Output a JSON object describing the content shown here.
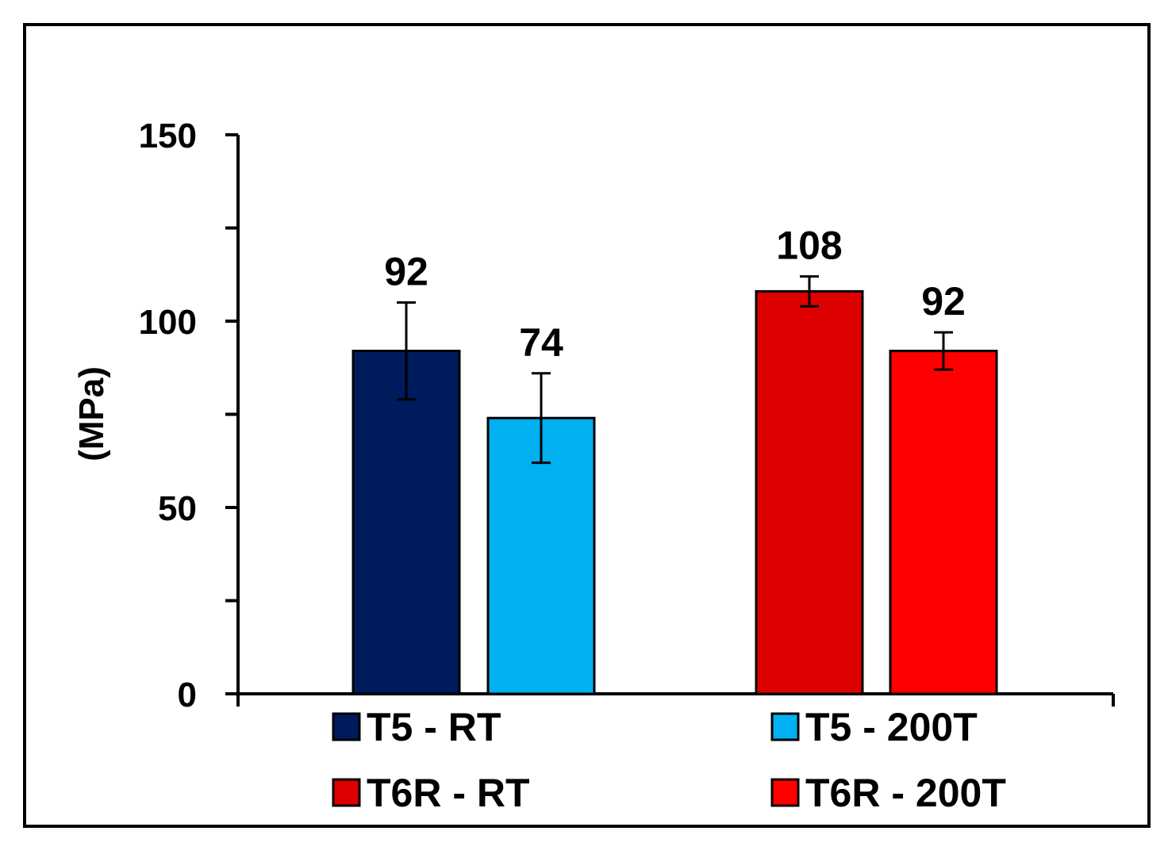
{
  "chart_data": {
    "type": "bar",
    "title": "",
    "xlabel": "",
    "ylabel": "(MPa)",
    "ylim": [
      0,
      150
    ],
    "yticks": [
      0,
      50,
      100,
      150
    ],
    "y_minor_step": 25,
    "grid": false,
    "legend_position": "bottom",
    "groups": [
      {
        "series": [
          "T5 - RT",
          "T5 - 200T"
        ]
      },
      {
        "series": [
          "T6R - RT",
          "T6R - 200T"
        ]
      }
    ],
    "series": [
      {
        "name": "T5 - RT",
        "value": 92,
        "error": 13,
        "label": "92",
        "color": "#001a5e"
      },
      {
        "name": "T5 - 200T",
        "value": 74,
        "error": 12,
        "label": "74",
        "color": "#00b0f0"
      },
      {
        "name": "T6R - RT",
        "value": 108,
        "error": 4,
        "label": "108",
        "color": "#dd0000"
      },
      {
        "name": "T6R - 200T",
        "value": 92,
        "error": 5,
        "label": "92",
        "color": "#ff0000"
      }
    ]
  }
}
